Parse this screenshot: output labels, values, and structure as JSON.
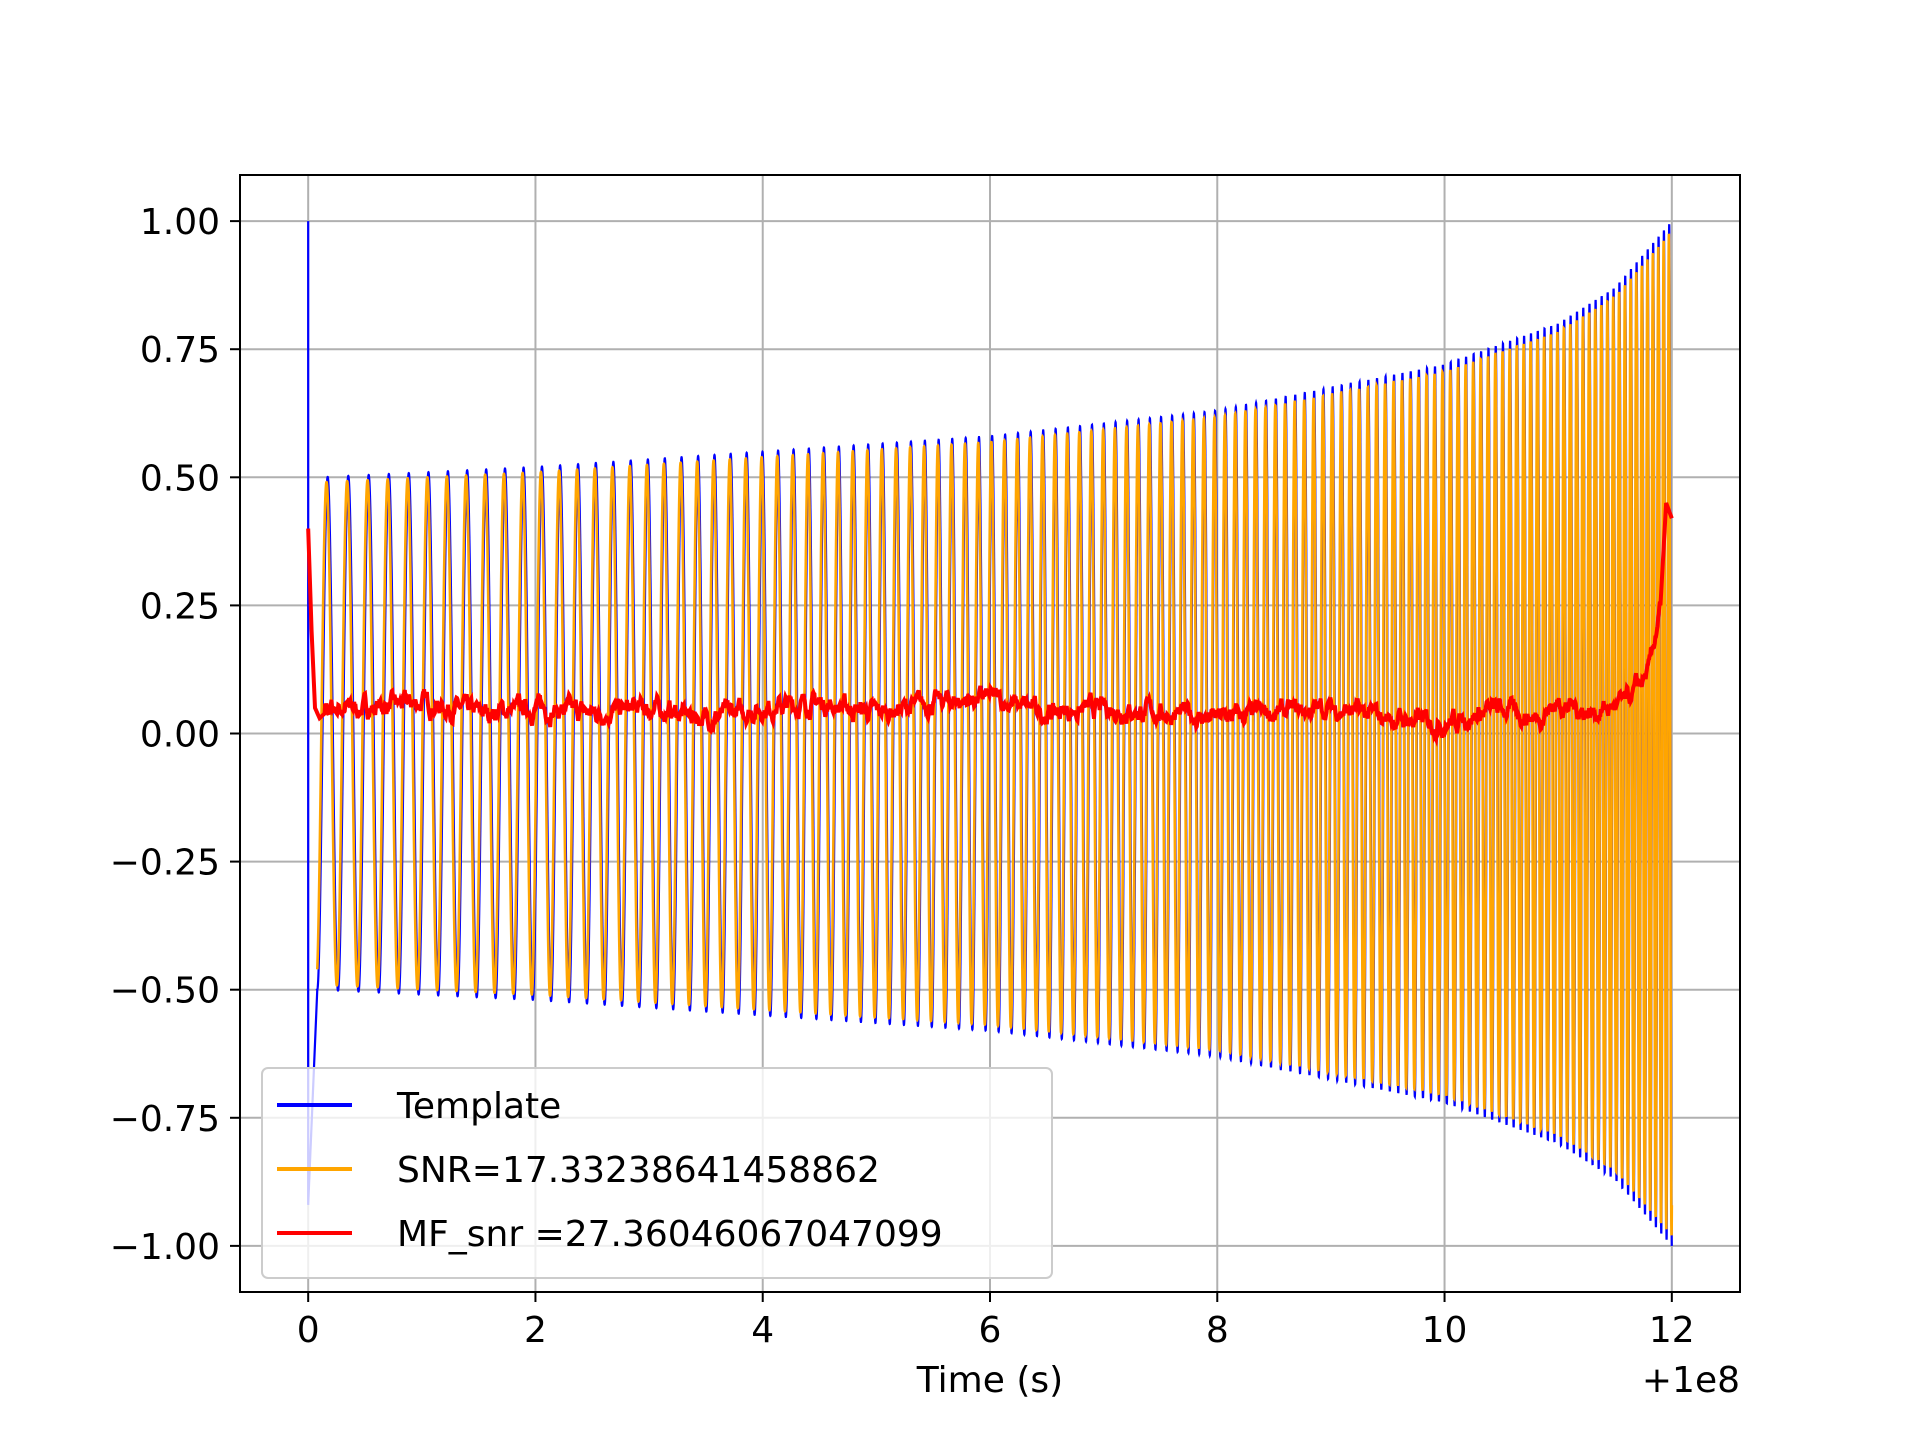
{
  "chart_data": {
    "type": "line",
    "title": "",
    "xlabel": "Time (s)",
    "ylabel": "",
    "x_offset_label": "+1e8",
    "xlim": [
      -0.6,
      12.6
    ],
    "ylim": [
      -1.09,
      1.09
    ],
    "xticks": [
      0,
      2,
      4,
      6,
      8,
      10,
      12
    ],
    "xtick_labels": [
      "0",
      "2",
      "4",
      "6",
      "8",
      "10",
      "12"
    ],
    "yticks": [
      1.0,
      0.75,
      0.5,
      0.25,
      0.0,
      -0.25,
      -0.5,
      -0.75,
      -1.0
    ],
    "ytick_labels": [
      "1.00",
      "0.75",
      "0.50",
      "0.25",
      "0.00",
      "−0.25",
      "−0.50",
      "−0.75",
      "−1.00"
    ],
    "grid": true,
    "legend_position": "lower-left",
    "series": [
      {
        "name": "Template",
        "color": "#0000ff",
        "x_range": [
          0,
          12
        ],
        "description_points": {
          "start_spike": [
            [
              0.0,
              1.0
            ],
            [
              0.0,
              -0.92
            ]
          ],
          "envelope": [
            [
              0.1,
              0.5
            ],
            [
              2,
              0.52
            ],
            [
              4,
              0.55
            ],
            [
              6,
              0.58
            ],
            [
              8,
              0.63
            ],
            [
              10,
              0.72
            ],
            [
              11,
              0.8
            ],
            [
              11.5,
              0.87
            ],
            [
              12,
              1.0
            ]
          ],
          "oscillation_cycles": 120
        }
      },
      {
        "name": "SNR=17.33238641458862",
        "color": "#ffa500",
        "x_range": [
          0,
          12
        ],
        "description_points": {
          "envelope": [
            [
              0.1,
              0.5
            ],
            [
              2,
              0.52
            ],
            [
              4,
              0.55
            ],
            [
              6,
              0.58
            ],
            [
              8,
              0.63
            ],
            [
              10,
              0.72
            ],
            [
              11,
              0.8
            ],
            [
              11.5,
              0.87
            ],
            [
              12,
              1.0
            ]
          ],
          "oscillation_cycles": 120
        }
      },
      {
        "name": "MF_snr =27.36046067047099",
        "color": "#ff0000",
        "x": [
          0.0,
          0.03,
          0.06,
          0.1,
          0.2,
          0.5,
          1,
          1.5,
          2,
          2.5,
          3,
          3.5,
          4,
          4.5,
          5,
          5.5,
          6,
          6.5,
          7,
          7.5,
          8,
          8.5,
          9,
          9.5,
          10,
          10.5,
          10.8,
          11,
          11.3,
          11.6,
          11.8,
          11.9,
          11.95,
          12.0
        ],
        "y": [
          0.4,
          0.2,
          0.05,
          0.03,
          0.05,
          0.05,
          0.06,
          0.04,
          0.05,
          0.04,
          0.05,
          0.03,
          0.05,
          0.06,
          0.04,
          0.06,
          0.07,
          0.04,
          0.05,
          0.04,
          0.03,
          0.04,
          0.05,
          0.03,
          0.02,
          0.05,
          0.03,
          0.06,
          0.04,
          0.06,
          0.12,
          0.25,
          0.45,
          0.42
        ]
      }
    ]
  }
}
